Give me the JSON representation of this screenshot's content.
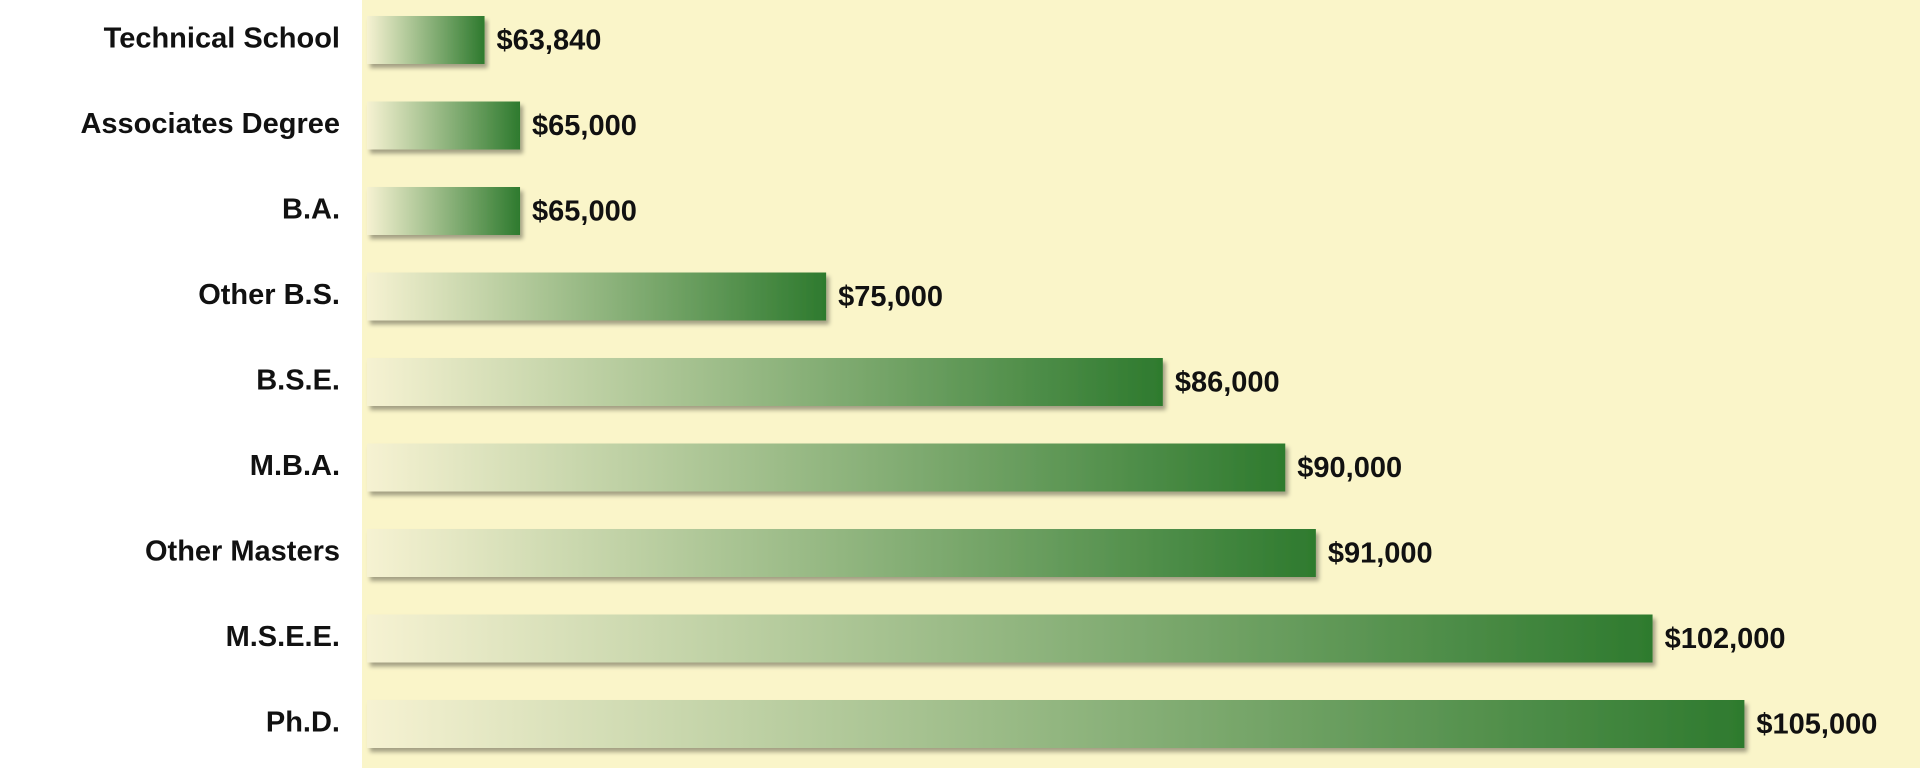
{
  "chart_data": {
    "type": "hbar",
    "categories": [
      "Technical School",
      "Associates Degree",
      "B.A.",
      "Other B.S.",
      "B.S.E.",
      "M.B.A.",
      "Other Masters",
      "M.S.E.E.",
      "Ph.D."
    ],
    "values": [
      63840,
      65000,
      65000,
      75000,
      86000,
      90000,
      91000,
      102000,
      105000
    ],
    "value_labels": [
      "$63,840",
      "$65,000",
      "$65,000",
      "$75,000",
      "$86,000",
      "$90,000",
      "$91,000",
      "$102,000",
      "$105,000"
    ],
    "color": "#2e7a2e",
    "xlim": [
      60000,
      106000
    ]
  }
}
